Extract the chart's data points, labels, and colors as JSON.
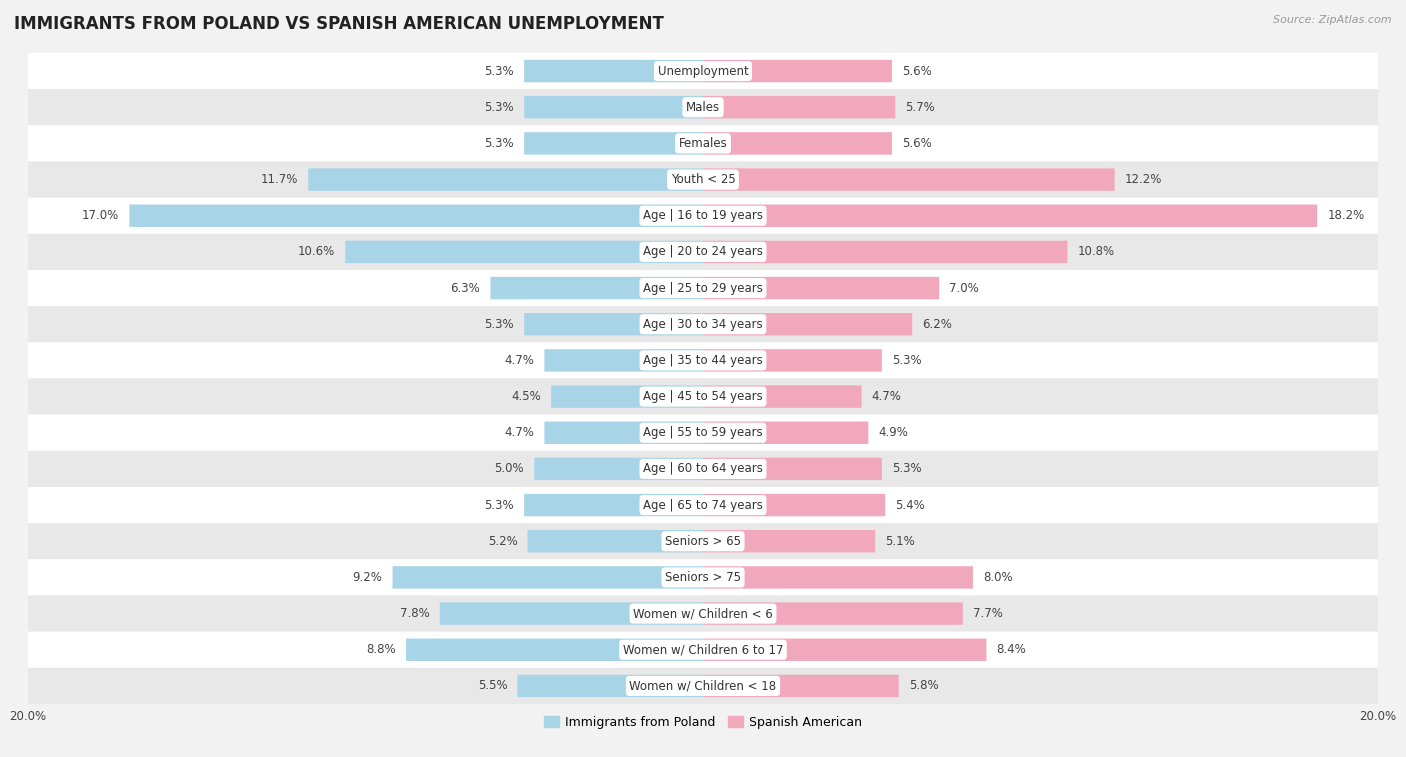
{
  "title": "IMMIGRANTS FROM POLAND VS SPANISH AMERICAN UNEMPLOYMENT",
  "source": "Source: ZipAtlas.com",
  "categories": [
    "Unemployment",
    "Males",
    "Females",
    "Youth < 25",
    "Age | 16 to 19 years",
    "Age | 20 to 24 years",
    "Age | 25 to 29 years",
    "Age | 30 to 34 years",
    "Age | 35 to 44 years",
    "Age | 45 to 54 years",
    "Age | 55 to 59 years",
    "Age | 60 to 64 years",
    "Age | 65 to 74 years",
    "Seniors > 65",
    "Seniors > 75",
    "Women w/ Children < 6",
    "Women w/ Children 6 to 17",
    "Women w/ Children < 18"
  ],
  "poland_values": [
    5.3,
    5.3,
    5.3,
    11.7,
    17.0,
    10.6,
    6.3,
    5.3,
    4.7,
    4.5,
    4.7,
    5.0,
    5.3,
    5.2,
    9.2,
    7.8,
    8.8,
    5.5
  ],
  "spanish_values": [
    5.6,
    5.7,
    5.6,
    12.2,
    18.2,
    10.8,
    7.0,
    6.2,
    5.3,
    4.7,
    4.9,
    5.3,
    5.4,
    5.1,
    8.0,
    7.7,
    8.4,
    5.8
  ],
  "poland_color": "#a8d4e8",
  "spanish_color": "#f2a8bc",
  "poland_label": "Immigrants from Poland",
  "spanish_label": "Spanish American",
  "xlim": 20.0,
  "bar_height": 0.62,
  "bg_color": "#f2f2f2",
  "row_color_even": "#ffffff",
  "row_color_odd": "#e8e8e8",
  "title_fontsize": 12,
  "label_fontsize": 8.5,
  "value_fontsize": 8.5,
  "legend_fontsize": 9,
  "title_color": "#222222",
  "source_color": "#999999",
  "value_color": "#444444"
}
